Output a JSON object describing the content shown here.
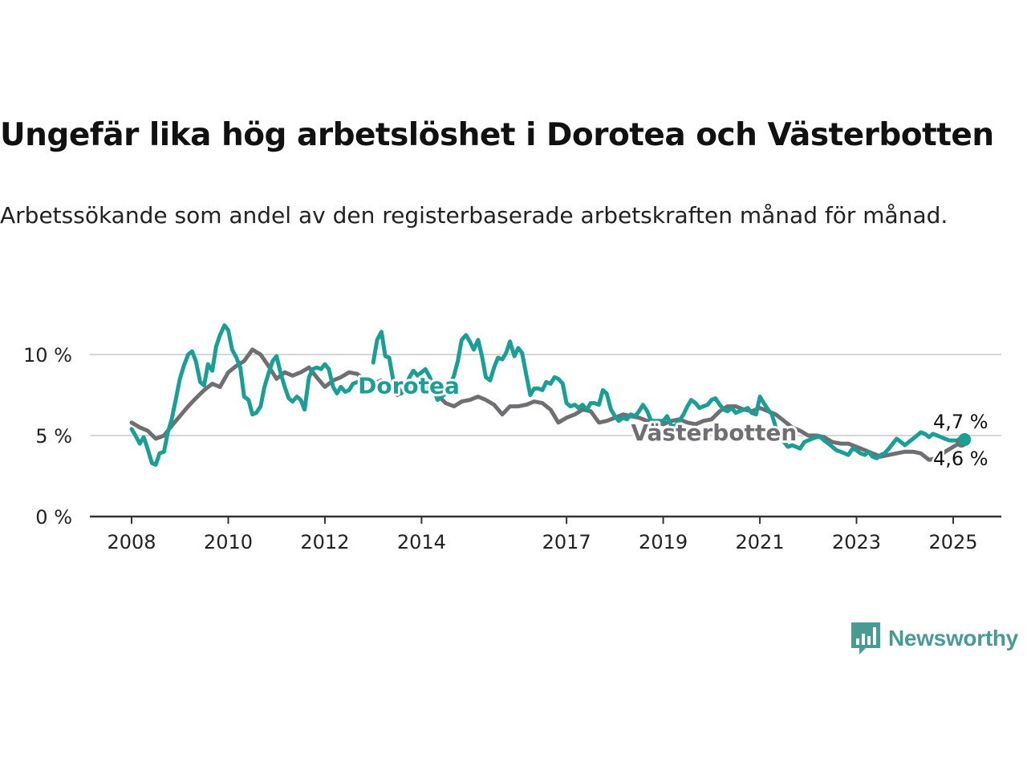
{
  "header": {
    "title": "Ungefär lika hög arbetslöshet i Dorotea och Västerbotten",
    "subtitle": "Arbetssökande som andel av den registerbaserade arbetskraften månad för månad."
  },
  "brand": {
    "name": "Newsworthy",
    "color": "#4a9a94",
    "icon": "bar-chart-speech-bubble-icon"
  },
  "chart_data": {
    "type": "line",
    "x_unit": "year",
    "ylim": [
      0,
      12
    ],
    "xlim": [
      2007.75,
      2026.0
    ],
    "y_ticks": [
      0,
      5,
      10
    ],
    "y_tick_labels": [
      "0 %",
      "5 %",
      "10 %"
    ],
    "x_ticks": [
      2008,
      2010,
      2012,
      2014,
      2017,
      2019,
      2021,
      2023,
      2025
    ],
    "x_tick_labels": [
      "2008",
      "2010",
      "2012",
      "2014",
      "2017",
      "2019",
      "2021",
      "2023",
      "2025"
    ],
    "grid": true,
    "series": [
      {
        "name": "Västerbotten",
        "color": "#6e6e73",
        "label_at": [
          2018.2,
          5.2
        ],
        "end_label": "4,6 %",
        "points": [
          [
            2008.0,
            5.8
          ],
          [
            2008.17,
            5.5
          ],
          [
            2008.33,
            5.3
          ],
          [
            2008.5,
            4.8
          ],
          [
            2008.67,
            5.0
          ],
          [
            2008.83,
            5.6
          ],
          [
            2009.0,
            6.2
          ],
          [
            2009.17,
            6.8
          ],
          [
            2009.33,
            7.3
          ],
          [
            2009.5,
            7.8
          ],
          [
            2009.67,
            8.2
          ],
          [
            2009.83,
            8.0
          ],
          [
            2010.0,
            8.9
          ],
          [
            2010.17,
            9.3
          ],
          [
            2010.33,
            9.6
          ],
          [
            2010.5,
            10.3
          ],
          [
            2010.67,
            10.0
          ],
          [
            2010.83,
            9.3
          ],
          [
            2011.0,
            8.5
          ],
          [
            2011.17,
            8.9
          ],
          [
            2011.33,
            8.7
          ],
          [
            2011.5,
            8.9
          ],
          [
            2011.67,
            9.2
          ],
          [
            2011.83,
            8.6
          ],
          [
            2012.0,
            8.0
          ],
          [
            2012.17,
            8.4
          ],
          [
            2012.33,
            8.6
          ],
          [
            2012.5,
            8.9
          ],
          [
            2012.67,
            8.8
          ],
          [
            2012.83,
            8.4
          ],
          [
            2013.0,
            8.2
          ],
          [
            2013.17,
            8.4
          ],
          [
            2013.33,
            7.9
          ],
          [
            2013.5,
            7.5
          ],
          [
            2013.67,
            7.8
          ],
          [
            2013.83,
            8.1
          ],
          [
            2014.0,
            8.0
          ],
          [
            2014.17,
            7.8
          ],
          [
            2014.33,
            7.5
          ],
          [
            2014.5,
            7.0
          ],
          [
            2014.67,
            6.8
          ],
          [
            2014.83,
            7.1
          ],
          [
            2015.0,
            7.2
          ],
          [
            2015.17,
            7.4
          ],
          [
            2015.33,
            7.2
          ],
          [
            2015.5,
            6.9
          ],
          [
            2015.67,
            6.3
          ],
          [
            2015.83,
            6.8
          ],
          [
            2016.0,
            6.8
          ],
          [
            2016.17,
            6.9
          ],
          [
            2016.33,
            7.1
          ],
          [
            2016.5,
            7.0
          ],
          [
            2016.67,
            6.6
          ],
          [
            2016.83,
            5.8
          ],
          [
            2017.0,
            6.1
          ],
          [
            2017.17,
            6.3
          ],
          [
            2017.33,
            6.6
          ],
          [
            2017.5,
            6.5
          ],
          [
            2017.67,
            5.8
          ],
          [
            2017.83,
            5.9
          ],
          [
            2018.0,
            6.1
          ],
          [
            2018.17,
            6.3
          ],
          [
            2018.33,
            6.2
          ],
          [
            2018.5,
            6.1
          ],
          [
            2018.67,
            5.9
          ],
          [
            2018.83,
            5.8
          ],
          [
            2019.0,
            5.7
          ],
          [
            2019.17,
            5.9
          ],
          [
            2019.33,
            6.0
          ],
          [
            2019.5,
            5.8
          ],
          [
            2019.67,
            5.7
          ],
          [
            2019.83,
            5.9
          ],
          [
            2020.0,
            6.0
          ],
          [
            2020.17,
            6.5
          ],
          [
            2020.33,
            6.8
          ],
          [
            2020.5,
            6.8
          ],
          [
            2020.67,
            6.6
          ],
          [
            2020.83,
            6.5
          ],
          [
            2021.0,
            6.7
          ],
          [
            2021.17,
            6.5
          ],
          [
            2021.33,
            6.3
          ],
          [
            2021.5,
            5.9
          ],
          [
            2021.67,
            5.5
          ],
          [
            2021.83,
            5.3
          ],
          [
            2022.0,
            5.0
          ],
          [
            2022.17,
            5.0
          ],
          [
            2022.33,
            4.9
          ],
          [
            2022.5,
            4.6
          ],
          [
            2022.67,
            4.5
          ],
          [
            2022.83,
            4.5
          ],
          [
            2023.0,
            4.3
          ],
          [
            2023.17,
            4.1
          ],
          [
            2023.33,
            3.9
          ],
          [
            2023.5,
            3.7
          ],
          [
            2023.67,
            3.8
          ],
          [
            2023.83,
            3.9
          ],
          [
            2024.0,
            4.0
          ],
          [
            2024.17,
            4.0
          ],
          [
            2024.33,
            3.9
          ],
          [
            2024.5,
            3.5
          ],
          [
            2024.67,
            3.6
          ],
          [
            2024.83,
            4.0
          ],
          [
            2025.0,
            4.3
          ],
          [
            2025.17,
            4.6
          ]
        ]
      },
      {
        "name": "Dorotea",
        "color": "#1a9e95",
        "label_at": [
          2012.75,
          8.1
        ],
        "end_label": "4,7 %",
        "points": [
          [
            2008.0,
            5.4
          ],
          [
            2008.08,
            5.0
          ],
          [
            2008.17,
            4.5
          ],
          [
            2008.25,
            4.9
          ],
          [
            2008.33,
            4.2
          ],
          [
            2008.42,
            3.3
          ],
          [
            2008.5,
            3.2
          ],
          [
            2008.58,
            3.9
          ],
          [
            2008.67,
            4.0
          ],
          [
            2008.75,
            5.2
          ],
          [
            2008.83,
            6.0
          ],
          [
            2008.92,
            7.3
          ],
          [
            2009.0,
            8.5
          ],
          [
            2009.08,
            9.3
          ],
          [
            2009.17,
            10.0
          ],
          [
            2009.25,
            10.2
          ],
          [
            2009.33,
            9.6
          ],
          [
            2009.42,
            8.3
          ],
          [
            2009.5,
            8.1
          ],
          [
            2009.58,
            9.4
          ],
          [
            2009.67,
            9.0
          ],
          [
            2009.75,
            10.5
          ],
          [
            2009.83,
            11.2
          ],
          [
            2009.92,
            11.8
          ],
          [
            2010.0,
            11.5
          ],
          [
            2010.08,
            10.3
          ],
          [
            2010.17,
            9.8
          ],
          [
            2010.25,
            9.2
          ],
          [
            2010.33,
            7.4
          ],
          [
            2010.42,
            7.2
          ],
          [
            2010.5,
            6.3
          ],
          [
            2010.58,
            6.4
          ],
          [
            2010.67,
            6.8
          ],
          [
            2010.75,
            8.0
          ],
          [
            2010.83,
            8.8
          ],
          [
            2010.92,
            9.6
          ],
          [
            2011.0,
            9.9
          ],
          [
            2011.08,
            8.9
          ],
          [
            2011.17,
            8.0
          ],
          [
            2011.25,
            7.3
          ],
          [
            2011.33,
            7.1
          ],
          [
            2011.42,
            7.4
          ],
          [
            2011.5,
            7.2
          ],
          [
            2011.58,
            6.6
          ],
          [
            2011.67,
            8.6
          ],
          [
            2011.75,
            9.1
          ],
          [
            2011.83,
            9.2
          ],
          [
            2011.92,
            9.1
          ],
          [
            2012.0,
            9.4
          ],
          [
            2012.08,
            9.1
          ],
          [
            2012.17,
            8.0
          ],
          [
            2012.25,
            7.6
          ],
          [
            2012.33,
            8.0
          ],
          [
            2012.42,
            7.7
          ],
          [
            2012.5,
            7.8
          ],
          [
            2012.58,
            8.2
          ],
          [
            2012.67,
            8.3
          ]
        ]
      }
    ],
    "dorotea_tail": [
      [
        2013.0,
        9.5
      ],
      [
        2013.08,
        10.9
      ],
      [
        2013.17,
        11.4
      ],
      [
        2013.25,
        9.9
      ],
      [
        2013.33,
        9.8
      ],
      [
        2013.42,
        8.3
      ],
      [
        2013.5,
        8.1
      ],
      [
        2013.58,
        7.6
      ],
      [
        2013.67,
        8.0
      ],
      [
        2013.75,
        8.6
      ],
      [
        2013.83,
        9.0
      ],
      [
        2013.92,
        8.7
      ],
      [
        2014.0,
        8.9
      ],
      [
        2014.08,
        9.1
      ],
      [
        2014.17,
        8.6
      ],
      [
        2014.25,
        7.9
      ],
      [
        2014.33,
        7.2
      ],
      [
        2014.42,
        7.4
      ],
      [
        2014.5,
        7.6
      ],
      [
        2014.58,
        8.0
      ],
      [
        2014.67,
        8.7
      ],
      [
        2014.75,
        9.6
      ],
      [
        2014.83,
        10.9
      ],
      [
        2014.92,
        11.2
      ],
      [
        2015.0,
        10.8
      ],
      [
        2015.08,
        10.3
      ],
      [
        2015.17,
        10.9
      ],
      [
        2015.25,
        9.9
      ],
      [
        2015.33,
        8.6
      ],
      [
        2015.42,
        8.4
      ],
      [
        2015.5,
        9.2
      ],
      [
        2015.58,
        9.8
      ],
      [
        2015.67,
        9.7
      ],
      [
        2015.75,
        10.1
      ],
      [
        2015.83,
        10.8
      ],
      [
        2015.92,
        9.9
      ],
      [
        2016.0,
        10.4
      ],
      [
        2016.08,
        10.1
      ],
      [
        2016.17,
        8.7
      ],
      [
        2016.25,
        7.5
      ],
      [
        2016.33,
        7.9
      ],
      [
        2016.42,
        7.9
      ],
      [
        2016.5,
        7.8
      ],
      [
        2016.58,
        8.3
      ],
      [
        2016.67,
        8.2
      ],
      [
        2016.75,
        8.6
      ],
      [
        2016.83,
        8.5
      ],
      [
        2016.92,
        8.2
      ],
      [
        2017.0,
        7.0
      ],
      [
        2017.08,
        6.8
      ],
      [
        2017.17,
        6.9
      ],
      [
        2017.25,
        6.7
      ],
      [
        2017.33,
        6.9
      ],
      [
        2017.42,
        6.6
      ],
      [
        2017.5,
        7.0
      ],
      [
        2017.58,
        7.0
      ],
      [
        2017.67,
        6.9
      ],
      [
        2017.75,
        7.8
      ],
      [
        2017.83,
        7.6
      ],
      [
        2017.92,
        6.6
      ],
      [
        2018.0,
        6.2
      ],
      [
        2018.08,
        5.9
      ],
      [
        2018.17,
        6.1
      ],
      [
        2018.25,
        6.0
      ],
      [
        2018.33,
        6.3
      ],
      [
        2018.42,
        6.2
      ],
      [
        2018.5,
        6.5
      ],
      [
        2018.58,
        6.9
      ],
      [
        2018.67,
        6.5
      ],
      [
        2018.75,
        5.9
      ],
      [
        2019.0,
        5.9
      ],
      [
        2019.08,
        6.2
      ],
      [
        2019.17,
        5.6
      ],
      [
        2019.25,
        5.6
      ],
      [
        2019.33,
        5.9
      ],
      [
        2019.42,
        6.3
      ],
      [
        2019.5,
        6.8
      ],
      [
        2019.58,
        7.2
      ],
      [
        2019.67,
        7.0
      ],
      [
        2019.75,
        6.7
      ],
      [
        2019.83,
        6.8
      ],
      [
        2019.92,
        6.9
      ],
      [
        2020.0,
        7.2
      ],
      [
        2020.08,
        7.3
      ],
      [
        2020.17,
        6.9
      ],
      [
        2020.25,
        6.6
      ],
      [
        2020.33,
        6.5
      ],
      [
        2020.42,
        6.7
      ],
      [
        2020.5,
        6.4
      ],
      [
        2020.58,
        6.5
      ],
      [
        2020.67,
        6.6
      ],
      [
        2020.75,
        6.7
      ],
      [
        2020.83,
        6.4
      ],
      [
        2020.92,
        6.3
      ],
      [
        2021.0,
        7.4
      ],
      [
        2021.08,
        7.0
      ],
      [
        2021.17,
        6.6
      ],
      [
        2021.25,
        6.3
      ],
      [
        2021.33,
        5.5
      ],
      [
        2021.42,
        4.8
      ],
      [
        2021.5,
        4.6
      ],
      [
        2021.58,
        4.3
      ],
      [
        2021.67,
        4.4
      ],
      [
        2021.75,
        4.3
      ],
      [
        2021.83,
        4.2
      ],
      [
        2021.92,
        4.6
      ],
      [
        2022.0,
        4.7
      ],
      [
        2022.08,
        4.8
      ],
      [
        2022.17,
        4.9
      ],
      [
        2022.25,
        4.9
      ],
      [
        2022.33,
        4.7
      ],
      [
        2022.42,
        4.5
      ],
      [
        2022.5,
        4.3
      ],
      [
        2022.58,
        4.1
      ],
      [
        2022.67,
        4.0
      ],
      [
        2022.75,
        3.9
      ],
      [
        2022.83,
        3.8
      ],
      [
        2022.92,
        4.2
      ],
      [
        2023.0,
        4.1
      ],
      [
        2023.08,
        3.9
      ],
      [
        2023.17,
        3.8
      ],
      [
        2023.25,
        4.0
      ],
      [
        2023.33,
        3.7
      ],
      [
        2023.42,
        3.6
      ],
      [
        2023.5,
        3.8
      ],
      [
        2023.58,
        3.9
      ],
      [
        2023.67,
        4.2
      ],
      [
        2023.75,
        4.5
      ],
      [
        2023.83,
        4.8
      ],
      [
        2023.92,
        4.6
      ],
      [
        2024.0,
        4.4
      ],
      [
        2024.08,
        4.6
      ],
      [
        2024.17,
        4.8
      ],
      [
        2024.25,
        5.0
      ],
      [
        2024.33,
        5.2
      ],
      [
        2024.42,
        5.1
      ],
      [
        2024.5,
        4.9
      ],
      [
        2024.58,
        5.1
      ],
      [
        2024.67,
        5.0
      ],
      [
        2024.75,
        4.9
      ],
      [
        2024.83,
        4.8
      ],
      [
        2024.92,
        4.7
      ],
      [
        2025.17,
        4.7
      ]
    ]
  }
}
